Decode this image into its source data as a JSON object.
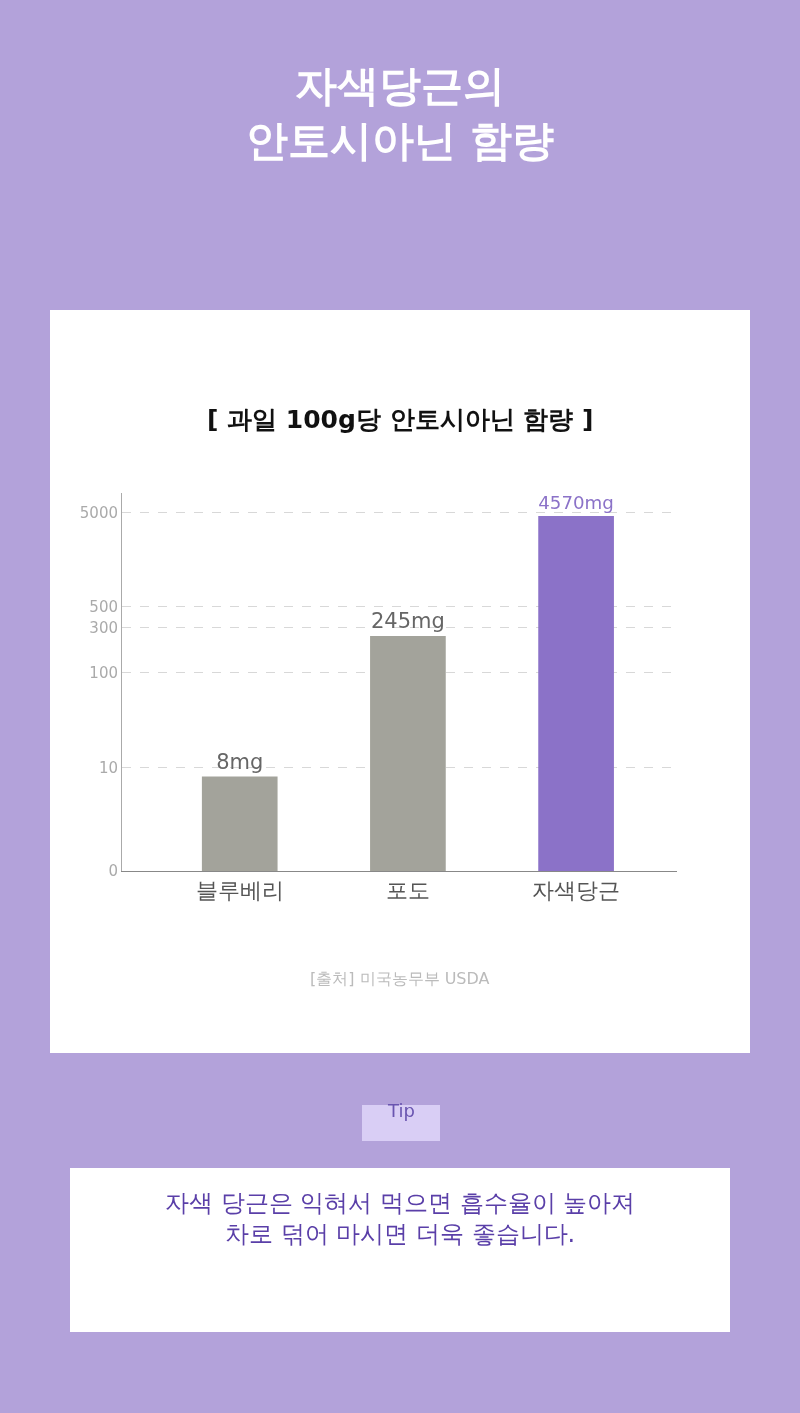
{
  "chart_data": {
    "type": "bar",
    "title": "자색당근의\n안토시아닌 함량",
    "subtitle": "[ 과일 100g당 안토시아닌 함량 ]",
    "categories": [
      "블루베리",
      "포도",
      "자색당근"
    ],
    "values": [
      8,
      245,
      4570
    ],
    "value_labels": [
      "8mg",
      "245mg",
      "4570mg"
    ],
    "colors": [
      "#a3a39b",
      "#a3a39b",
      "#8b72c8"
    ],
    "log": "y",
    "ylim": [
      0,
      8000
    ],
    "yticks": [
      0,
      10,
      100,
      300,
      500,
      5000
    ],
    "grid": "y",
    "annotations": [
      "[출처] 미국농무부 USDA",
      "Tip",
      "자색 당근은 익혀서 먹으면 흡수율이 높아져\n차로 덖어 마시면 더욱 좋습니다."
    ]
  }
}
